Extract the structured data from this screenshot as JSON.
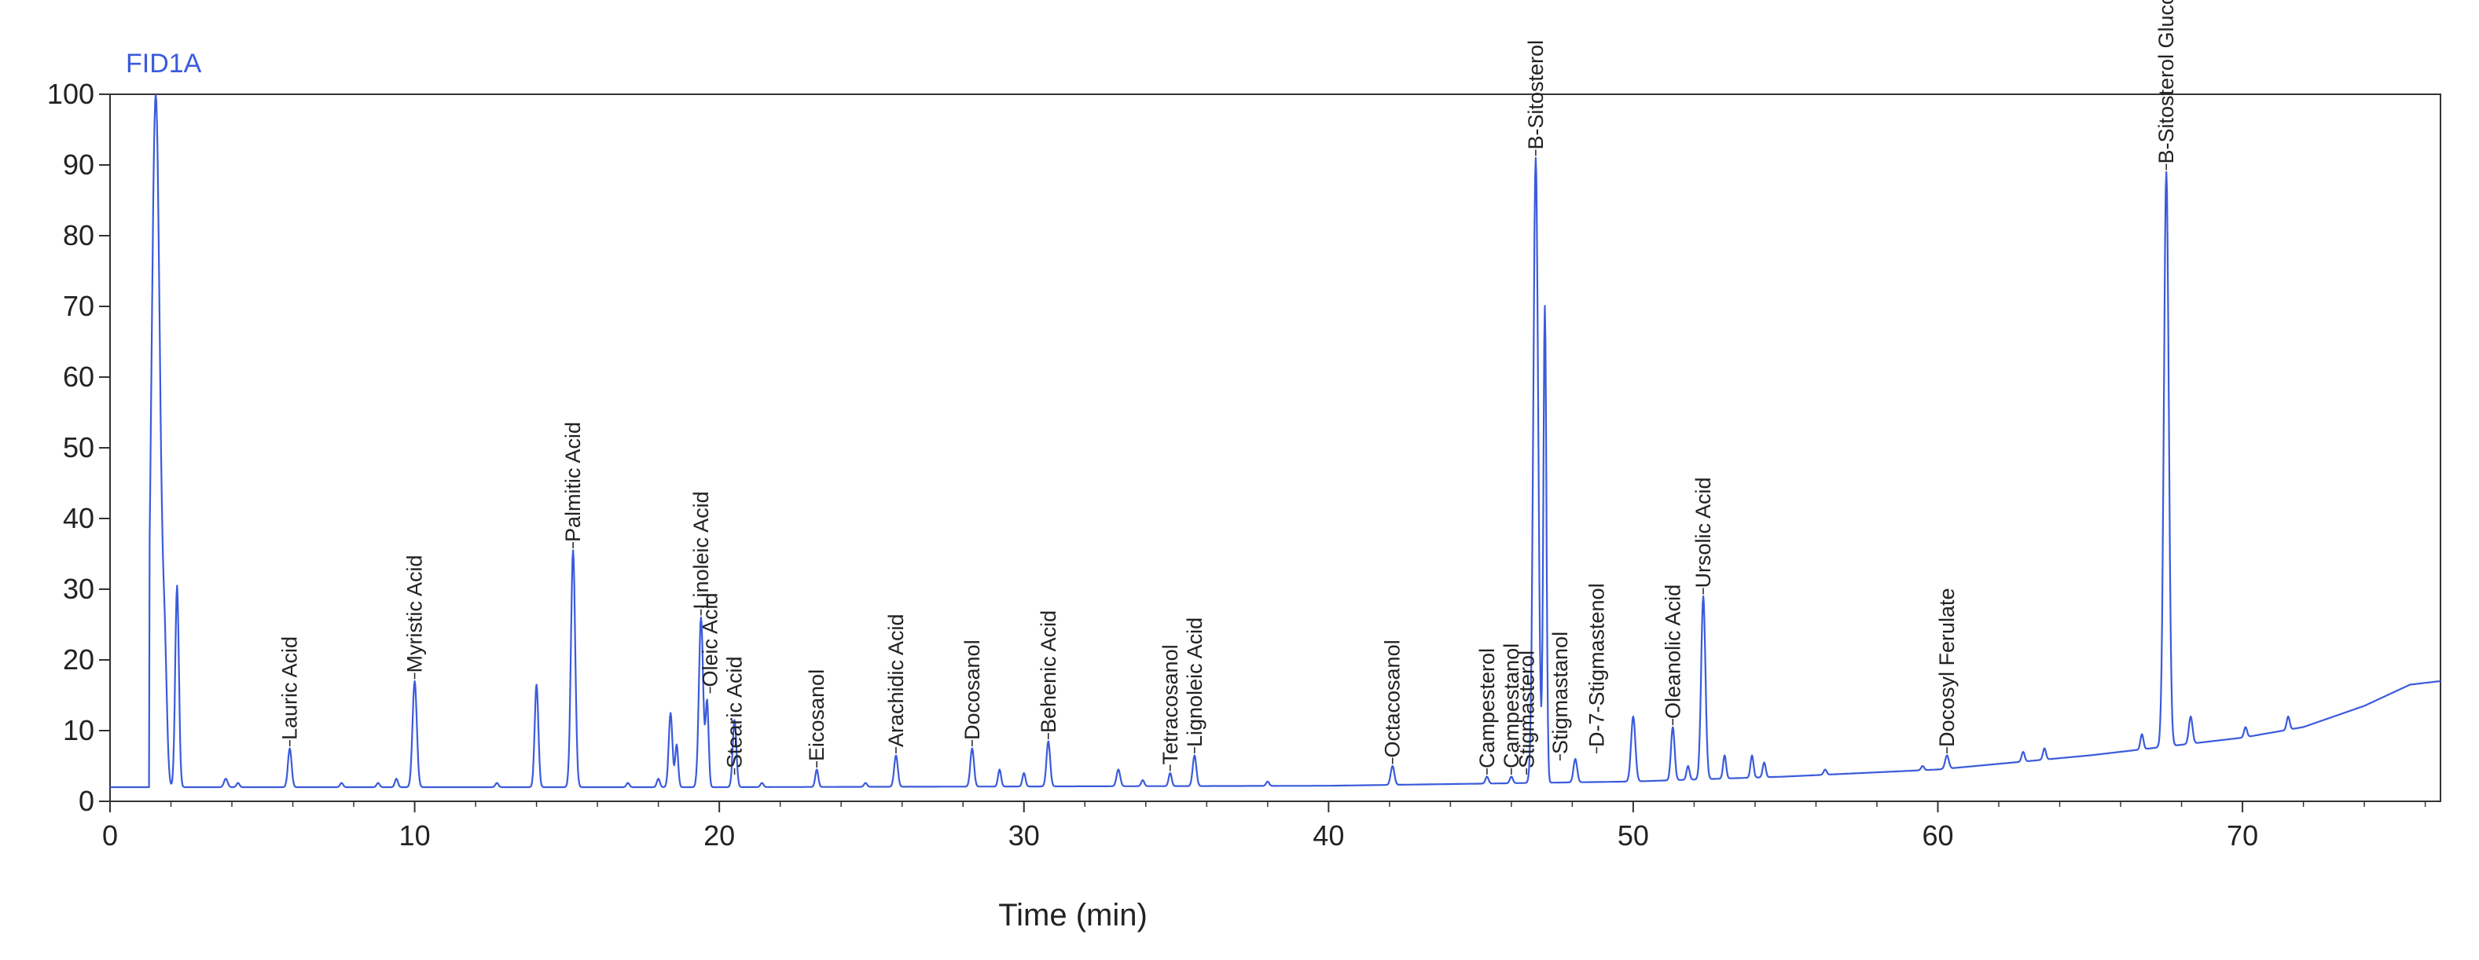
{
  "chart_data": {
    "type": "line",
    "title": "",
    "trace_name": "FID1A",
    "xlabel": "Time (min)",
    "ylabel": "",
    "xlim": [
      0,
      76.5
    ],
    "ylim": [
      0,
      100
    ],
    "x_ticks": [
      0,
      10,
      20,
      30,
      40,
      50,
      60,
      70
    ],
    "y_ticks": [
      0,
      10,
      20,
      30,
      40,
      50,
      60,
      70,
      80,
      90,
      100
    ],
    "grid": false,
    "legend": "none",
    "colors": {
      "trace": "#3B5BDB",
      "axis": "#333333",
      "label": "#222222"
    },
    "baseline": [
      [
        0,
        2.0
      ],
      [
        20,
        2.0
      ],
      [
        40,
        2.2
      ],
      [
        50,
        2.8
      ],
      [
        55,
        3.5
      ],
      [
        60,
        4.5
      ],
      [
        65,
        6.5
      ],
      [
        70,
        9.0
      ],
      [
        72,
        10.5
      ],
      [
        74,
        13.5
      ],
      [
        75.5,
        16.5
      ],
      [
        76.5,
        17.0
      ]
    ],
    "peaks": [
      {
        "x": 1.5,
        "y": 100,
        "w": 0.14
      },
      {
        "x": 1.8,
        "y": 16,
        "w": 0.07
      },
      {
        "x": 2.2,
        "y": 30.5,
        "w": 0.06
      },
      {
        "x": 3.8,
        "y": 3.2,
        "w": 0.06
      },
      {
        "x": 4.2,
        "y": 2.6,
        "w": 0.05
      },
      {
        "x": 5.9,
        "y": 7.5,
        "w": 0.06
      },
      {
        "x": 7.6,
        "y": 2.6,
        "w": 0.05
      },
      {
        "x": 8.8,
        "y": 2.6,
        "w": 0.05
      },
      {
        "x": 9.4,
        "y": 3.2,
        "w": 0.05
      },
      {
        "x": 10.0,
        "y": 17.0,
        "w": 0.07
      },
      {
        "x": 12.7,
        "y": 2.6,
        "w": 0.05
      },
      {
        "x": 14.0,
        "y": 16.5,
        "w": 0.06
      },
      {
        "x": 15.2,
        "y": 35.5,
        "w": 0.07
      },
      {
        "x": 17.0,
        "y": 2.6,
        "w": 0.05
      },
      {
        "x": 18.0,
        "y": 3.2,
        "w": 0.05
      },
      {
        "x": 18.4,
        "y": 12.5,
        "w": 0.06
      },
      {
        "x": 18.6,
        "y": 8.0,
        "w": 0.05
      },
      {
        "x": 19.4,
        "y": 26.0,
        "w": 0.07
      },
      {
        "x": 19.6,
        "y": 14.0,
        "w": 0.05
      },
      {
        "x": 20.5,
        "y": 11.5,
        "w": 0.06
      },
      {
        "x": 21.4,
        "y": 2.6,
        "w": 0.05
      },
      {
        "x": 23.2,
        "y": 4.5,
        "w": 0.05
      },
      {
        "x": 24.8,
        "y": 2.6,
        "w": 0.05
      },
      {
        "x": 25.8,
        "y": 6.5,
        "w": 0.06
      },
      {
        "x": 28.3,
        "y": 7.5,
        "w": 0.06
      },
      {
        "x": 29.2,
        "y": 4.5,
        "w": 0.05
      },
      {
        "x": 30.0,
        "y": 4.0,
        "w": 0.05
      },
      {
        "x": 30.8,
        "y": 8.5,
        "w": 0.06
      },
      {
        "x": 33.1,
        "y": 4.5,
        "w": 0.06
      },
      {
        "x": 33.9,
        "y": 3.0,
        "w": 0.05
      },
      {
        "x": 34.8,
        "y": 4.0,
        "w": 0.05
      },
      {
        "x": 35.6,
        "y": 6.5,
        "w": 0.06
      },
      {
        "x": 38.0,
        "y": 2.8,
        "w": 0.05
      },
      {
        "x": 42.1,
        "y": 5.0,
        "w": 0.06
      },
      {
        "x": 45.2,
        "y": 3.5,
        "w": 0.05
      },
      {
        "x": 46.0,
        "y": 3.5,
        "w": 0.05
      },
      {
        "x": 46.8,
        "y": 91.0,
        "w": 0.08
      },
      {
        "x": 47.1,
        "y": 70.0,
        "w": 0.05
      },
      {
        "x": 48.1,
        "y": 6.0,
        "w": 0.06
      },
      {
        "x": 50.0,
        "y": 12.0,
        "w": 0.07
      },
      {
        "x": 51.3,
        "y": 10.5,
        "w": 0.06
      },
      {
        "x": 51.8,
        "y": 5.0,
        "w": 0.05
      },
      {
        "x": 52.3,
        "y": 29.0,
        "w": 0.07
      },
      {
        "x": 53.0,
        "y": 6.5,
        "w": 0.05
      },
      {
        "x": 53.9,
        "y": 6.5,
        "w": 0.05
      },
      {
        "x": 54.3,
        "y": 5.5,
        "w": 0.05
      },
      {
        "x": 56.3,
        "y": 4.5,
        "w": 0.05
      },
      {
        "x": 59.5,
        "y": 5.0,
        "w": 0.05
      },
      {
        "x": 60.3,
        "y": 6.5,
        "w": 0.06
      },
      {
        "x": 62.8,
        "y": 7.0,
        "w": 0.05
      },
      {
        "x": 63.5,
        "y": 7.5,
        "w": 0.05
      },
      {
        "x": 66.7,
        "y": 9.5,
        "w": 0.05
      },
      {
        "x": 67.5,
        "y": 89.0,
        "w": 0.08
      },
      {
        "x": 68.3,
        "y": 12.0,
        "w": 0.06
      },
      {
        "x": 70.1,
        "y": 10.5,
        "w": 0.05
      },
      {
        "x": 71.5,
        "y": 12.0,
        "w": 0.05
      }
    ],
    "peak_labels": [
      {
        "text": "Lauric Acid",
        "x": 5.9,
        "y": 8.0
      },
      {
        "text": "Myristic Acid",
        "x": 10.0,
        "y": 17.5
      },
      {
        "text": "Palmitic Acid",
        "x": 15.2,
        "y": 36.0
      },
      {
        "text": "Linoleic Acid",
        "x": 19.4,
        "y": 26.5
      },
      {
        "text": "Oleic Acid",
        "x": 19.7,
        "y": 15.5
      },
      {
        "text": "Stearic Acid",
        "x": 20.5,
        "y": 4.0
      },
      {
        "text": "Eicosanol",
        "x": 23.2,
        "y": 5.0
      },
      {
        "text": "Arachidic Acid",
        "x": 25.8,
        "y": 7.0
      },
      {
        "text": "Docosanol",
        "x": 28.3,
        "y": 8.0
      },
      {
        "text": "Behenic Acid",
        "x": 30.8,
        "y": 9.0
      },
      {
        "text": "Tetracosanol",
        "x": 34.8,
        "y": 4.5
      },
      {
        "text": "Lignoleic Acid",
        "x": 35.6,
        "y": 7.0
      },
      {
        "text": "Octacosanol",
        "x": 42.1,
        "y": 5.5
      },
      {
        "text": "Campesterol",
        "x": 45.2,
        "y": 4.0
      },
      {
        "text": "Campestanol",
        "x": 46.0,
        "y": 4.0
      },
      {
        "text": "Stigmasterol",
        "x": 46.5,
        "y": 4.0
      },
      {
        "text": "B-Sitosterol",
        "x": 46.8,
        "y": 91.5
      },
      {
        "text": "Stigmastanol",
        "x": 47.6,
        "y": 6.0
      },
      {
        "text": "D-7-Stigmastenol",
        "x": 48.8,
        "y": 7.0
      },
      {
        "text": "Oleanolic Acid",
        "x": 51.3,
        "y": 11.0
      },
      {
        "text": "Ursolic Acid",
        "x": 52.3,
        "y": 29.5
      },
      {
        "text": "Docosyl Ferulate",
        "x": 60.3,
        "y": 7.0
      },
      {
        "text": "B-Sitosterol Glucosid",
        "x": 67.5,
        "y": 89.5
      }
    ]
  }
}
